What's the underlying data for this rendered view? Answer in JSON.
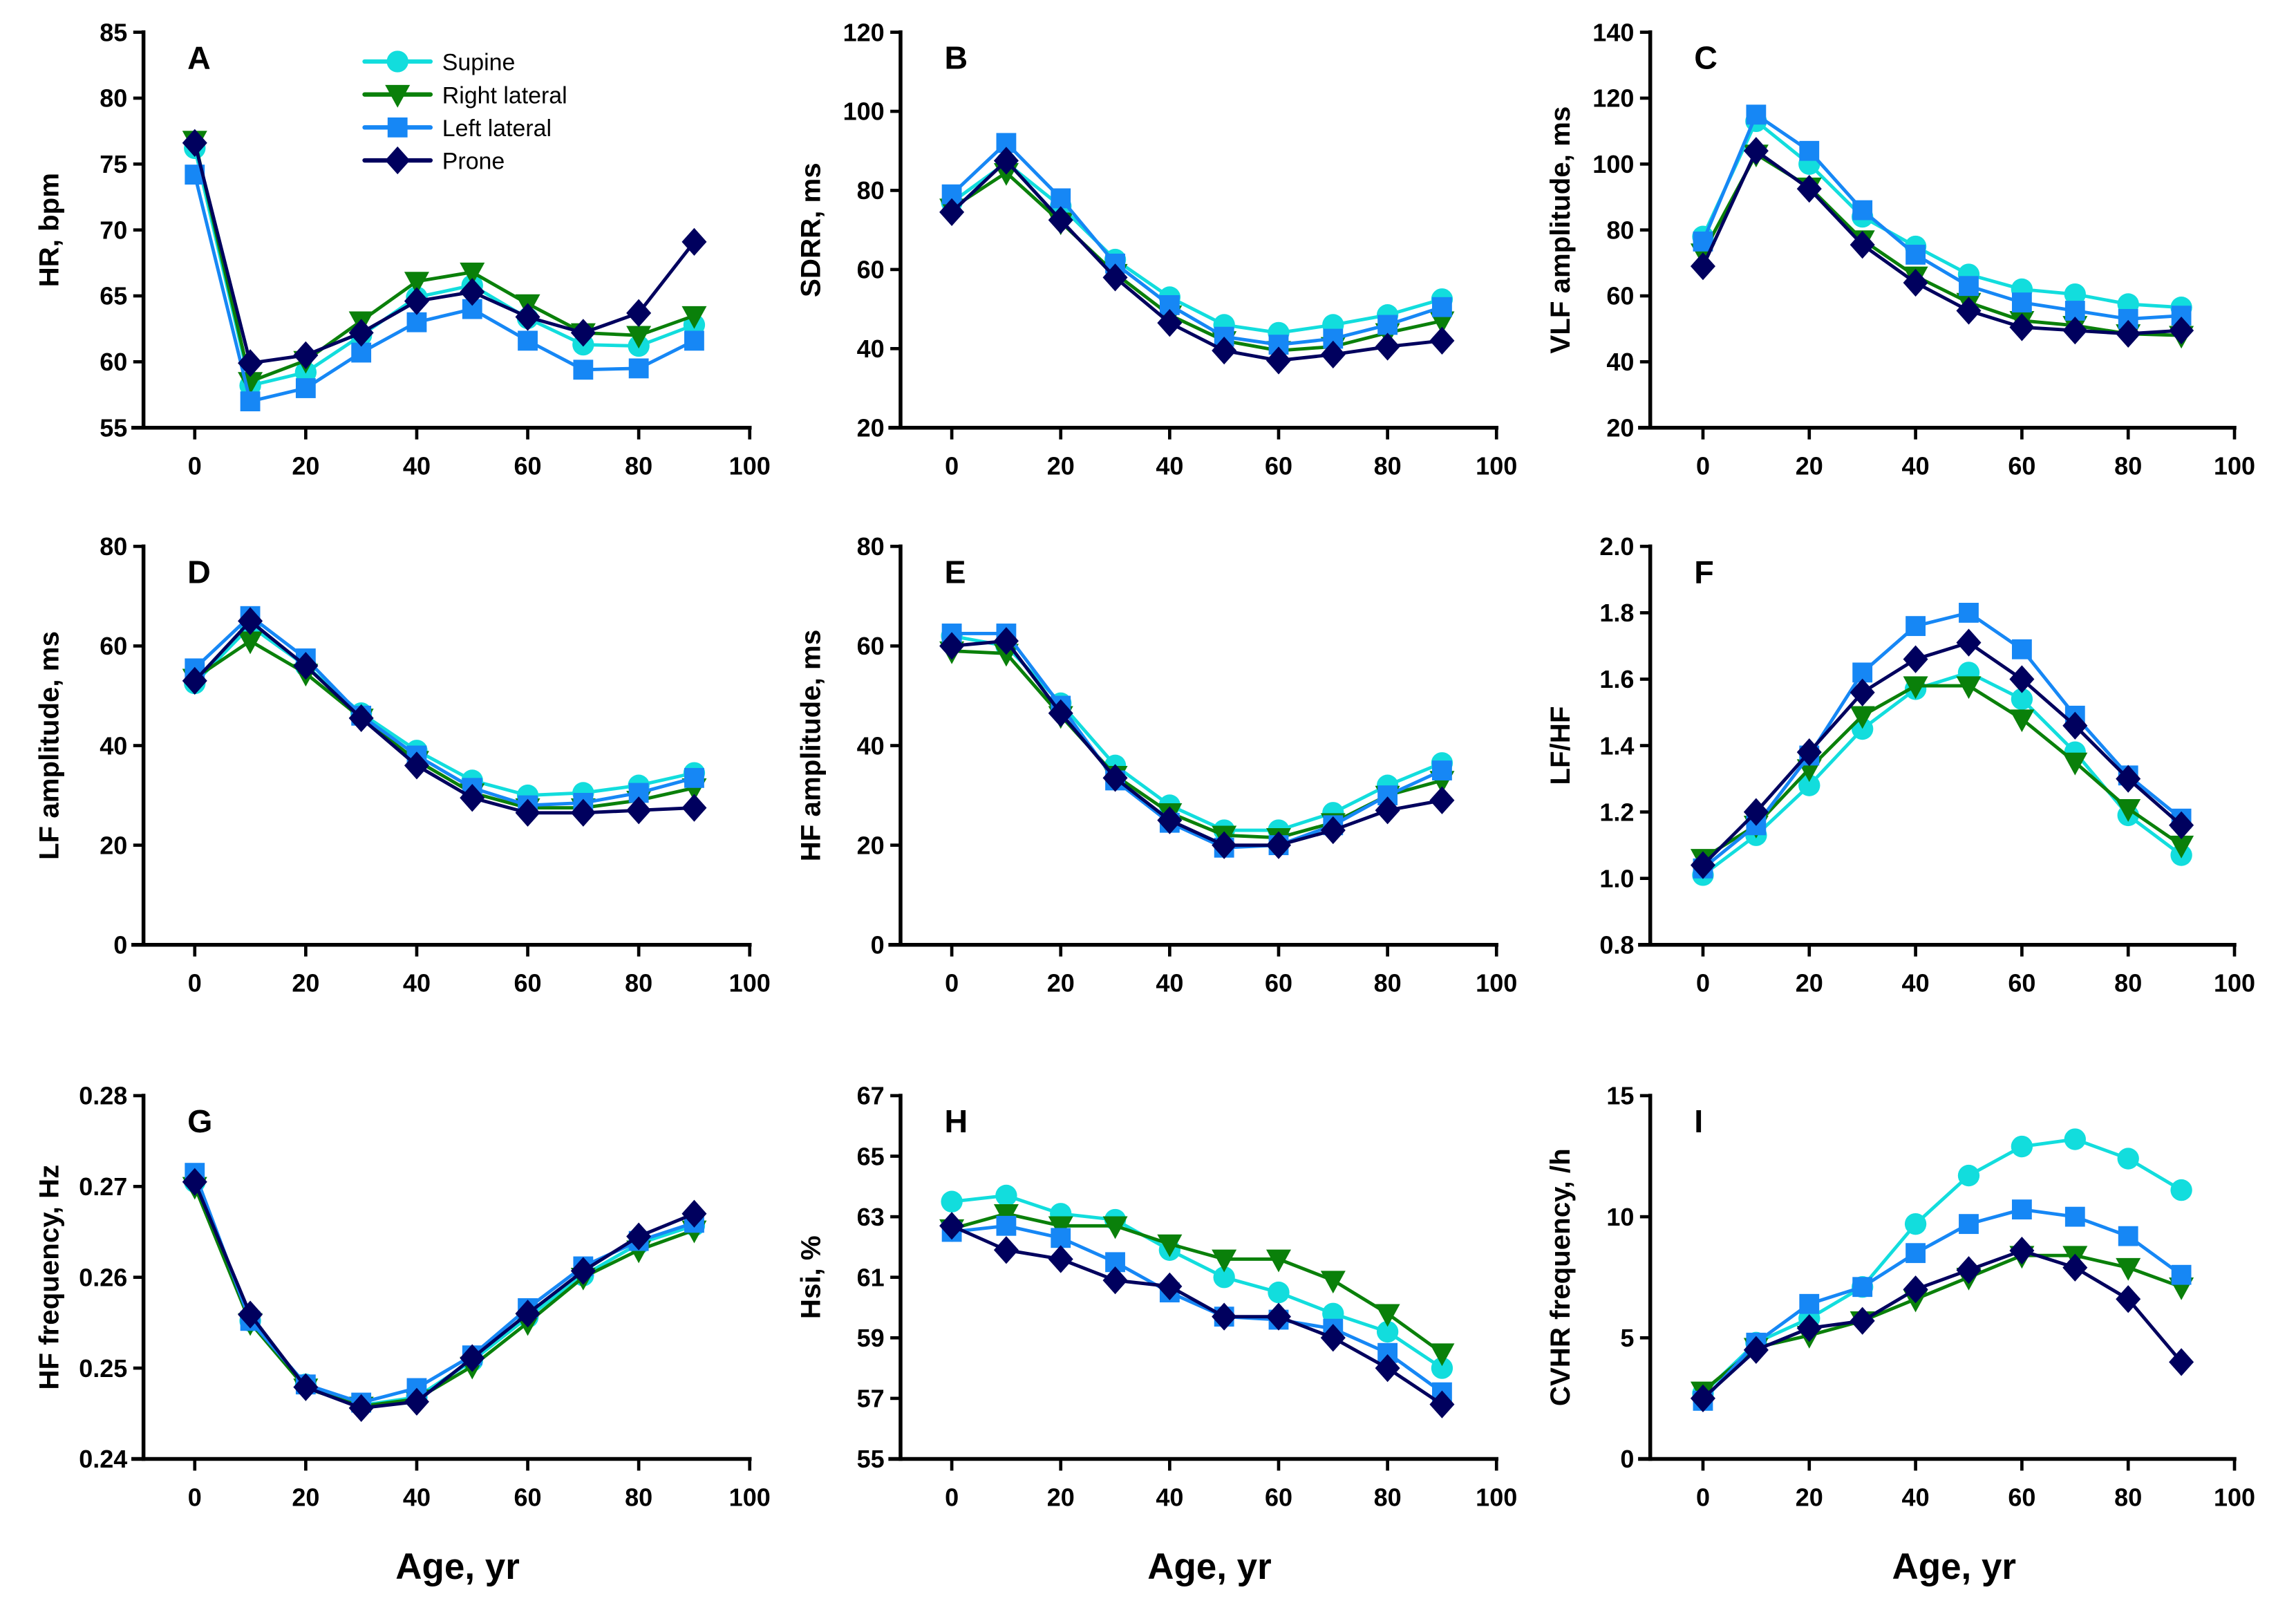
{
  "chart_data": {
    "type": "line",
    "layout": "3x3 grid of panels",
    "shared_x": [
      0,
      10,
      20,
      30,
      40,
      50,
      60,
      70,
      80,
      90
    ],
    "xlabel": "Age, yr",
    "xlim": [
      -10,
      100
    ],
    "x_ticks": [
      "0",
      "20",
      "40",
      "60",
      "80",
      "100"
    ],
    "x_tick_values": [
      0,
      20,
      40,
      60,
      80,
      100
    ],
    "grid": false,
    "legend": {
      "placement": "top-right of panel A",
      "entries": [
        {
          "name": "Supine",
          "color": "#12DDDD",
          "marker": "circle"
        },
        {
          "name": "Right lateral",
          "color": "#0A800A",
          "marker": "triangle-down"
        },
        {
          "name": "Left lateral",
          "color": "#1687F5",
          "marker": "square"
        },
        {
          "name": "Prone",
          "color": "#00005E",
          "marker": "diamond"
        }
      ]
    },
    "panels": [
      {
        "letter": "A",
        "ylabel": "HR, bpm",
        "ylim": [
          55,
          85
        ],
        "y_ticks": [
          55,
          60,
          65,
          70,
          75,
          80,
          85
        ],
        "y_tick_labels": [
          "55",
          "60",
          "65",
          "70",
          "75",
          "80",
          "85"
        ],
        "series": [
          {
            "name": "Supine",
            "values": [
              76.2,
              58.2,
              59.2,
              62.0,
              64.9,
              65.8,
              63.3,
              61.3,
              61.2,
              62.8
            ]
          },
          {
            "name": "Right lateral",
            "values": [
              76.8,
              58.5,
              60.1,
              63.1,
              66.1,
              66.8,
              64.4,
              62.2,
              62.0,
              63.5
            ]
          },
          {
            "name": "Left lateral",
            "values": [
              74.2,
              57.0,
              58.0,
              60.7,
              63.0,
              64.0,
              61.6,
              59.4,
              59.5,
              61.6
            ]
          },
          {
            "name": "Prone",
            "values": [
              76.6,
              59.9,
              60.5,
              62.2,
              64.6,
              65.3,
              63.4,
              62.2,
              63.7,
              69.1
            ]
          }
        ]
      },
      {
        "letter": "B",
        "ylabel": "SDRR, ms",
        "ylim": [
          20,
          120
        ],
        "y_ticks": [
          20,
          40,
          60,
          80,
          100,
          120
        ],
        "y_tick_labels": [
          "20",
          "40",
          "60",
          "80",
          "100",
          "120"
        ],
        "series": [
          {
            "name": "Supine",
            "values": [
              77,
              87,
              76,
              62.5,
              53,
              46,
              44,
              46,
              48.5,
              52.5
            ]
          },
          {
            "name": "Right lateral",
            "values": [
              75.5,
              84.5,
              72,
              59,
              48.5,
              42,
              39.5,
              40.5,
              44,
              47
            ]
          },
          {
            "name": "Left lateral",
            "values": [
              79,
              92,
              78,
              61.5,
              51,
              43,
              41,
              42.5,
              46,
              50.5
            ]
          },
          {
            "name": "Prone",
            "values": [
              74.5,
              87.5,
              72.5,
              58,
              46.5,
              39.5,
              37,
              38.5,
              40.5,
              42
            ]
          }
        ]
      },
      {
        "letter": "C",
        "ylabel": "VLF amplitude, ms",
        "ylim": [
          20,
          140
        ],
        "y_ticks": [
          20,
          40,
          60,
          80,
          100,
          120,
          140
        ],
        "y_tick_labels": [
          "20",
          "40",
          "60",
          "80",
          "100",
          "120",
          "140"
        ],
        "series": [
          {
            "name": "Supine",
            "values": [
              78,
              113,
              100,
              84,
              75,
              66.5,
              62,
              60.5,
              57.5,
              56.5
            ]
          },
          {
            "name": "Right lateral",
            "values": [
              73,
              103,
              93,
              77,
              66,
              58,
              52.5,
              51,
              48.5,
              48
            ]
          },
          {
            "name": "Left lateral",
            "values": [
              76.5,
              115,
              104,
              86,
              72.5,
              63,
              58,
              55.5,
              53,
              54
            ]
          },
          {
            "name": "Prone",
            "values": [
              69,
              104,
              92.5,
              75.5,
              64,
              55.5,
              50.5,
              49.5,
              48.5,
              49.5
            ]
          }
        ]
      },
      {
        "letter": "D",
        "ylabel": "LF amplitude, ms",
        "ylim": [
          0,
          80
        ],
        "y_ticks": [
          0,
          20,
          40,
          60,
          80
        ],
        "y_tick_labels": [
          "0",
          "20",
          "40",
          "60",
          "80"
        ],
        "series": [
          {
            "name": "Supine",
            "values": [
              52.5,
              64,
              56,
              46.5,
              39,
              33,
              30,
              30.5,
              32,
              34.5
            ]
          },
          {
            "name": "Right lateral",
            "values": [
              53.5,
              61,
              54.5,
              45.5,
              37,
              30.5,
              27.5,
              27.5,
              29,
              31.5
            ]
          },
          {
            "name": "Left lateral",
            "values": [
              55.5,
              66,
              57.5,
              46,
              38,
              31.5,
              28,
              28.5,
              30.5,
              33.5
            ]
          },
          {
            "name": "Prone",
            "values": [
              53,
              65,
              56,
              45.5,
              36,
              29.5,
              26.5,
              26.5,
              27,
              27.5
            ]
          }
        ]
      },
      {
        "letter": "E",
        "ylabel": "HF amplitude, ms",
        "ylim": [
          0,
          80
        ],
        "y_ticks": [
          0,
          20,
          40,
          60,
          80
        ],
        "y_tick_labels": [
          "0",
          "20",
          "40",
          "60",
          "80"
        ],
        "series": [
          {
            "name": "Supine",
            "values": [
              62,
              60,
              48.5,
              36,
              28,
              23,
              23,
              26.5,
              32,
              36.5
            ]
          },
          {
            "name": "Right lateral",
            "values": [
              59,
              58.5,
              46,
              34,
              26.5,
              22,
              21.5,
              24.5,
              30,
              33
            ]
          },
          {
            "name": "Left lateral",
            "values": [
              62.5,
              62.5,
              48,
              33,
              24.5,
              19.5,
              20,
              24,
              30,
              35
            ]
          },
          {
            "name": "Prone",
            "values": [
              60,
              61,
              46.5,
              33.5,
              25,
              20,
              20,
              23,
              27,
              29
            ]
          }
        ]
      },
      {
        "letter": "F",
        "ylabel": "LF/HF",
        "ylim": [
          0.8,
          2.0
        ],
        "y_ticks": [
          0.8,
          1.0,
          1.2,
          1.4,
          1.6,
          1.8,
          2.0
        ],
        "y_tick_labels": [
          "0.8",
          "1.0",
          "1.2",
          "1.4",
          "1.6",
          "1.8",
          "2.0"
        ],
        "series": [
          {
            "name": "Supine",
            "values": [
              1.01,
              1.13,
              1.28,
              1.45,
              1.57,
              1.62,
              1.54,
              1.38,
              1.19,
              1.07
            ]
          },
          {
            "name": "Right lateral",
            "values": [
              1.06,
              1.16,
              1.33,
              1.49,
              1.58,
              1.58,
              1.48,
              1.35,
              1.21,
              1.1
            ]
          },
          {
            "name": "Left lateral",
            "values": [
              1.03,
              1.16,
              1.37,
              1.62,
              1.76,
              1.8,
              1.69,
              1.49,
              1.31,
              1.18
            ]
          },
          {
            "name": "Prone",
            "values": [
              1.04,
              1.2,
              1.38,
              1.56,
              1.66,
              1.71,
              1.6,
              1.46,
              1.3,
              1.16
            ]
          }
        ]
      },
      {
        "letter": "G",
        "ylabel": "HF frequency, Hz",
        "ylim": [
          0.24,
          0.28
        ],
        "y_ticks": [
          0.24,
          0.25,
          0.26,
          0.27,
          0.28
        ],
        "y_tick_labels": [
          "0.24",
          "0.25",
          "0.26",
          "0.27",
          "0.28"
        ],
        "series": [
          {
            "name": "Supine",
            "values": [
              0.2705,
              0.2552,
              0.2482,
              0.2459,
              0.2468,
              0.2508,
              0.2556,
              0.2602,
              0.2637,
              0.2657
            ]
          },
          {
            "name": "Right lateral",
            "values": [
              0.27,
              0.255,
              0.2478,
              0.2458,
              0.2466,
              0.2502,
              0.255,
              0.26,
              0.263,
              0.2652
            ]
          },
          {
            "name": "Left lateral",
            "values": [
              0.2715,
              0.2552,
              0.2482,
              0.2462,
              0.2478,
              0.2514,
              0.2566,
              0.2612,
              0.264,
              0.266
            ]
          },
          {
            "name": "Prone",
            "values": [
              0.2705,
              0.2559,
              0.2479,
              0.2456,
              0.2463,
              0.2511,
              0.256,
              0.2607,
              0.2645,
              0.267
            ]
          }
        ]
      },
      {
        "letter": "H",
        "ylabel": "Hsi, %",
        "ylim": [
          55,
          67
        ],
        "y_ticks": [
          55,
          57,
          59,
          61,
          63,
          65,
          67
        ],
        "y_tick_labels": [
          "55",
          "57",
          "59",
          "61",
          "63",
          "65",
          "67"
        ],
        "series": [
          {
            "name": "Supine",
            "values": [
              63.5,
              63.7,
              63.1,
              62.9,
              61.9,
              61.0,
              60.5,
              59.8,
              59.2,
              58.0
            ]
          },
          {
            "name": "Right lateral",
            "values": [
              62.6,
              63.1,
              62.7,
              62.7,
              62.1,
              61.6,
              61.6,
              60.9,
              59.8,
              58.5
            ]
          },
          {
            "name": "Left lateral",
            "values": [
              62.5,
              62.7,
              62.3,
              61.5,
              60.5,
              59.7,
              59.6,
              59.3,
              58.5,
              57.2
            ]
          },
          {
            "name": "Prone",
            "values": [
              62.7,
              61.9,
              61.6,
              60.9,
              60.7,
              59.7,
              59.7,
              59.0,
              58.0,
              56.8
            ]
          }
        ]
      },
      {
        "letter": "I",
        "ylabel": "CVHR frequency, /h",
        "ylim": [
          0,
          15
        ],
        "y_ticks": [
          0,
          5,
          10,
          15
        ],
        "y_tick_labels": [
          "0",
          "5",
          "10",
          "15"
        ],
        "series": [
          {
            "name": "Supine",
            "values": [
              2.7,
              4.8,
              5.8,
              7.1,
              9.7,
              11.7,
              12.9,
              13.2,
              12.4,
              11.1
            ]
          },
          {
            "name": "Right lateral",
            "values": [
              2.8,
              4.6,
              5.1,
              5.7,
              6.6,
              7.5,
              8.4,
              8.4,
              7.9,
              7.1
            ]
          },
          {
            "name": "Left lateral",
            "values": [
              2.4,
              4.8,
              6.4,
              7.1,
              8.5,
              9.7,
              10.3,
              10.0,
              9.2,
              7.6
            ]
          },
          {
            "name": "Prone",
            "values": [
              2.5,
              4.5,
              5.4,
              5.7,
              7.0,
              7.8,
              8.6,
              7.9,
              6.6,
              4.0
            ]
          }
        ]
      }
    ]
  }
}
